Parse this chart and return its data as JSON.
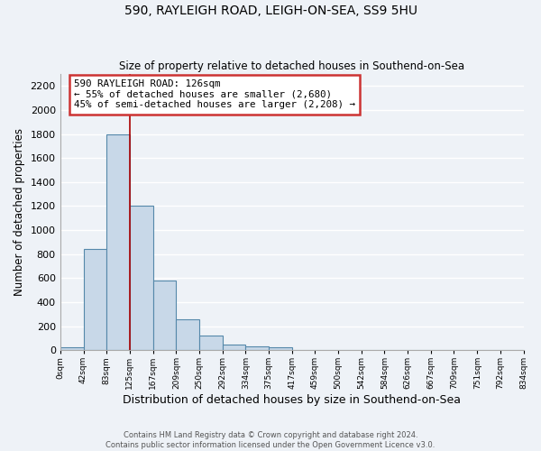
{
  "title": "590, RAYLEIGH ROAD, LEIGH-ON-SEA, SS9 5HU",
  "subtitle": "Size of property relative to detached houses in Southend-on-Sea",
  "xlabel": "Distribution of detached houses by size in Southend-on-Sea",
  "ylabel": "Number of detached properties",
  "bar_edges": [
    0,
    42,
    83,
    125,
    167,
    209,
    250,
    292,
    334,
    375,
    417,
    459,
    500,
    542,
    584,
    626,
    667,
    709,
    751,
    792,
    834
  ],
  "bar_heights": [
    25,
    840,
    1800,
    1200,
    580,
    255,
    120,
    45,
    30,
    20,
    0,
    0,
    0,
    0,
    0,
    0,
    0,
    0,
    0,
    0
  ],
  "bar_color": "#c8d8e8",
  "bar_edge_color": "#5588aa",
  "reference_line_x": 126,
  "reference_line_color": "#aa0000",
  "annotation_title": "590 RAYLEIGH ROAD: 126sqm",
  "annotation_line1": "← 55% of detached houses are smaller (2,680)",
  "annotation_line2": "45% of semi-detached houses are larger (2,208) →",
  "annotation_box_color": "#ffffff",
  "annotation_box_edge_color": "#cc3333",
  "ylim": [
    0,
    2300
  ],
  "xlim": [
    0,
    834
  ],
  "ytick_step": 200,
  "background_color": "#eef2f7",
  "grid_color": "#ffffff",
  "footer_line1": "Contains HM Land Registry data © Crown copyright and database right 2024.",
  "footer_line2": "Contains public sector information licensed under the Open Government Licence v3.0.",
  "tick_labels": [
    "0sqm",
    "42sqm",
    "83sqm",
    "125sqm",
    "167sqm",
    "209sqm",
    "250sqm",
    "292sqm",
    "334sqm",
    "375sqm",
    "417sqm",
    "459sqm",
    "500sqm",
    "542sqm",
    "584sqm",
    "626sqm",
    "667sqm",
    "709sqm",
    "751sqm",
    "792sqm",
    "834sqm"
  ]
}
